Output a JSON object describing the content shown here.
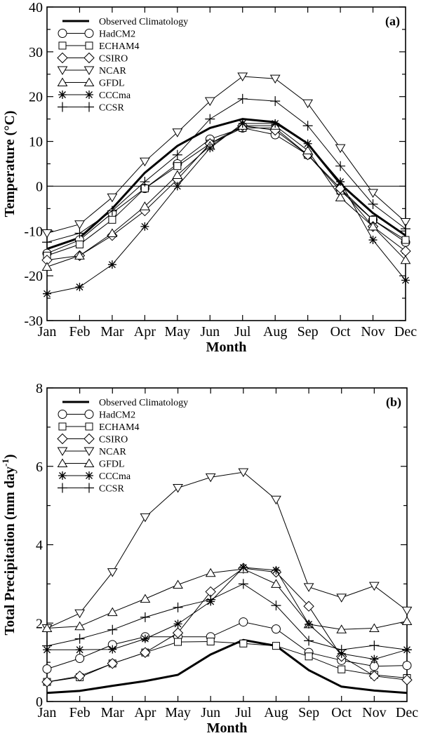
{
  "chart_data": [
    {
      "type": "line",
      "panel_label": "(a)",
      "title": "",
      "xlabel": "Month",
      "ylabel": "Temperature (°C)",
      "ylim": [
        -30,
        40
      ],
      "yticks": [
        -30,
        -20,
        -10,
        0,
        10,
        20,
        30,
        40
      ],
      "zero_line": true,
      "legend_position": "top-left",
      "categories": [
        "Jan",
        "Feb",
        "Mar",
        "Apr",
        "May",
        "Jun",
        "Jul",
        "Aug",
        "Sep",
        "Oct",
        "Nov",
        "Dec"
      ],
      "series": [
        {
          "name": "Observed Climatology",
          "marker": "none",
          "values": [
            -14,
            -11.5,
            -5,
            3,
            9,
            13,
            15,
            14.3,
            9.5,
            0.5,
            -6,
            -11
          ]
        },
        {
          "name": "HadCM2",
          "marker": "circle",
          "values": [
            -15,
            -12,
            -6,
            -0.5,
            5,
            10.5,
            13,
            11.5,
            7,
            -0.5,
            -7.5,
            -12.5
          ]
        },
        {
          "name": "ECHAM4",
          "marker": "square",
          "values": [
            -15.5,
            -13,
            -7.5,
            -0.5,
            4.5,
            9.5,
            13,
            13,
            7,
            -1,
            -7.5,
            -12
          ]
        },
        {
          "name": "CSIRO",
          "marker": "diamond",
          "values": [
            -16.5,
            -15.5,
            -11,
            -5.5,
            1.5,
            9.5,
            13.5,
            12.5,
            7,
            -0.5,
            -9,
            -14.5
          ]
        },
        {
          "name": "NCAR",
          "marker": "triangle-down",
          "values": [
            -10.5,
            -8.5,
            -2.5,
            5.5,
            12,
            19,
            24.5,
            24,
            18.5,
            8.5,
            -1.5,
            -8
          ]
        },
        {
          "name": "GFDL",
          "marker": "triangle-up",
          "values": [
            -18,
            -15.5,
            -10.5,
            -4.5,
            2.5,
            9,
            13.5,
            13.5,
            8,
            -2.5,
            -9,
            -16.5
          ]
        },
        {
          "name": "CCCma",
          "marker": "asterisk",
          "values": [
            -24,
            -22.5,
            -17.5,
            -9,
            0,
            8.5,
            14,
            14,
            9.5,
            1,
            -12,
            -21
          ]
        },
        {
          "name": "CCSR",
          "marker": "plus",
          "values": [
            -12.5,
            -10.5,
            -5.5,
            1,
            7,
            15,
            19.5,
            19,
            13.5,
            4.5,
            -4,
            -9.5
          ]
        }
      ]
    },
    {
      "type": "line",
      "panel_label": "(b)",
      "title": "",
      "xlabel": "Month",
      "ylabel": "Total Precipitation (mm day⁻¹)",
      "ylim": [
        0,
        8
      ],
      "yticks": [
        0,
        2,
        4,
        6,
        8
      ],
      "zero_line": false,
      "legend_position": "top-left",
      "categories": [
        "Jan",
        "Feb",
        "Mar",
        "Apr",
        "May",
        "Jun",
        "Jul",
        "Aug",
        "Sep",
        "Oct",
        "Nov",
        "Dec"
      ],
      "series": [
        {
          "name": "Observed Climatology",
          "marker": "none",
          "values": [
            0.22,
            0.27,
            0.4,
            0.52,
            0.68,
            1.2,
            1.57,
            1.42,
            0.8,
            0.38,
            0.28,
            0.22
          ]
        },
        {
          "name": "HadCM2",
          "marker": "circle",
          "values": [
            0.83,
            1.1,
            1.45,
            1.65,
            1.65,
            1.65,
            2.03,
            1.85,
            1.25,
            1.05,
            0.9,
            0.92
          ]
        },
        {
          "name": "ECHAM4",
          "marker": "square",
          "values": [
            0.5,
            0.62,
            0.97,
            1.25,
            1.52,
            1.53,
            1.48,
            1.42,
            1.15,
            0.82,
            0.68,
            0.6
          ]
        },
        {
          "name": "CSIRO",
          "marker": "diamond",
          "values": [
            0.5,
            0.65,
            0.97,
            1.25,
            1.75,
            2.8,
            3.4,
            3.3,
            2.43,
            1.15,
            0.65,
            0.55
          ]
        },
        {
          "name": "NCAR",
          "marker": "triangle-down",
          "values": [
            1.87,
            2.25,
            3.3,
            4.7,
            5.45,
            5.72,
            5.85,
            5.15,
            2.92,
            2.65,
            2.95,
            2.32
          ]
        },
        {
          "name": "GFDL",
          "marker": "triangle-up",
          "values": [
            1.87,
            1.92,
            2.28,
            2.62,
            2.98,
            3.28,
            3.38,
            3.0,
            1.97,
            1.84,
            1.87,
            2.05
          ]
        },
        {
          "name": "CCCma",
          "marker": "asterisk",
          "values": [
            1.32,
            1.32,
            1.33,
            1.6,
            1.98,
            2.55,
            3.42,
            3.35,
            1.97,
            1.22,
            1.08,
            1.32
          ]
        },
        {
          "name": "CCSR",
          "marker": "plus",
          "values": [
            1.42,
            1.6,
            1.83,
            2.15,
            2.4,
            2.6,
            3.0,
            2.45,
            1.55,
            1.32,
            1.43,
            1.32
          ]
        }
      ]
    }
  ]
}
